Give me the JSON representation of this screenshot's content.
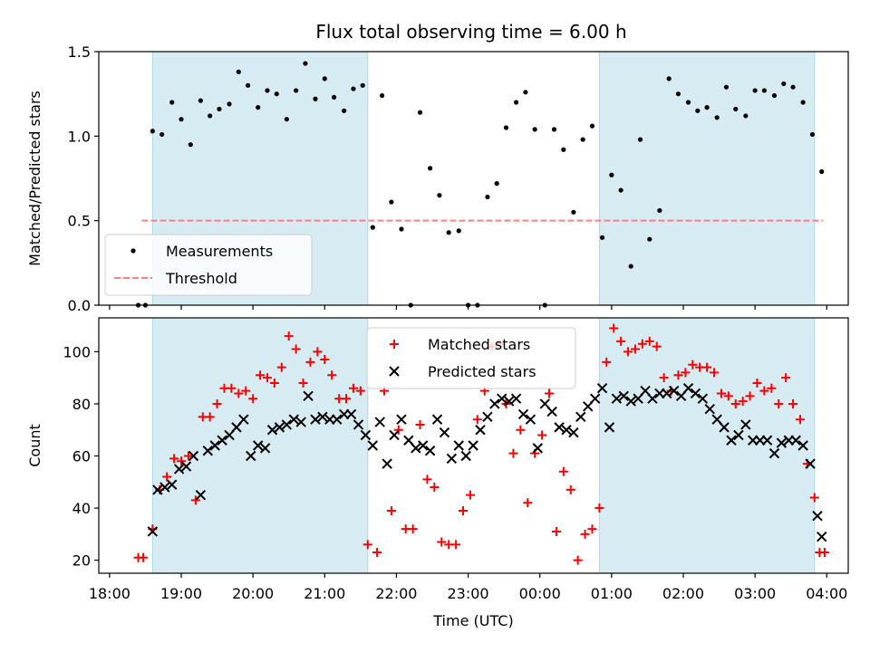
{
  "chart_data": [
    {
      "type": "scatter",
      "title": "Flux total observing time = 6.00 h",
      "xlabel": "",
      "ylabel": "Matched/Predicted stars",
      "xlim": [
        -0.15,
        10.3
      ],
      "ylim": [
        0,
        1.5
      ],
      "yticks": [
        "0.0",
        "0.5",
        "1.0",
        "1.5"
      ],
      "shaded_intervals": [
        [
          0.6,
          3.6
        ],
        [
          6.83,
          9.83
        ]
      ],
      "threshold": {
        "value": 0.5,
        "x_range": [
          0.45,
          9.95
        ],
        "color": "#ff7f7f"
      },
      "legend": {
        "location": "lower-left",
        "entries": [
          "Measurements",
          "Threshold"
        ]
      },
      "series": [
        {
          "name": "Measurements",
          "color": "#000000",
          "x": [
            0.4,
            0.5,
            0.6,
            0.73,
            0.87,
            1.0,
            1.13,
            1.27,
            1.4,
            1.53,
            1.67,
            1.8,
            1.93,
            2.07,
            2.2,
            2.33,
            2.47,
            2.6,
            2.73,
            2.87,
            3.0,
            3.13,
            3.27,
            3.4,
            3.53,
            3.67,
            3.8,
            3.93,
            4.07,
            4.2,
            4.33,
            4.47,
            4.6,
            4.73,
            4.87,
            5.0,
            5.13,
            5.27,
            5.4,
            5.53,
            5.67,
            5.8,
            5.93,
            6.07,
            6.2,
            6.33,
            6.47,
            6.6,
            6.73,
            6.87,
            7.0,
            7.13,
            7.27,
            7.4,
            7.53,
            7.67,
            7.8,
            7.93,
            8.07,
            8.2,
            8.33,
            8.47,
            8.6,
            8.73,
            8.87,
            9.0,
            9.13,
            9.27,
            9.4,
            9.53,
            9.67,
            9.8,
            9.93
          ],
          "y": [
            0.0,
            0.0,
            1.03,
            1.01,
            1.2,
            1.1,
            0.95,
            1.21,
            1.12,
            1.16,
            1.19,
            1.38,
            1.3,
            1.17,
            1.27,
            1.25,
            1.1,
            1.27,
            1.43,
            1.22,
            1.34,
            1.23,
            1.15,
            1.28,
            1.3,
            0.46,
            1.24,
            0.61,
            0.45,
            0.0,
            1.14,
            0.81,
            0.65,
            0.43,
            0.44,
            0.0,
            0.0,
            0.64,
            0.72,
            1.05,
            1.2,
            1.26,
            1.04,
            0.0,
            1.04,
            0.92,
            0.55,
            0.98,
            1.06,
            0.4,
            0.77,
            0.68,
            0.23,
            0.98,
            0.39,
            0.56,
            1.34,
            1.25,
            1.2,
            1.15,
            1.17,
            1.11,
            1.29,
            1.16,
            1.12,
            1.27,
            1.27,
            1.24,
            1.31,
            1.29,
            1.2,
            1.01,
            0.79
          ]
        }
      ]
    },
    {
      "type": "scatter",
      "title": "",
      "xlabel": "Time (UTC)",
      "ylabel": "Count",
      "xlim": [
        -0.15,
        10.3
      ],
      "ylim": [
        15,
        113
      ],
      "yticks": [
        "20",
        "40",
        "60",
        "80",
        "100"
      ],
      "xticks": [
        "18:00",
        "19:00",
        "20:00",
        "21:00",
        "22:00",
        "23:00",
        "00:00",
        "01:00",
        "02:00",
        "03:00",
        "04:00"
      ],
      "shaded_intervals": [
        [
          0.6,
          3.6
        ],
        [
          6.83,
          9.83
        ]
      ],
      "legend": {
        "location": "upper-center",
        "entries": [
          "Matched stars",
          "Predicted stars"
        ]
      },
      "series": [
        {
          "name": "Matched stars",
          "color": "#ff0000",
          "marker": "+",
          "x": [
            0.4,
            0.47,
            0.6,
            0.7,
            0.8,
            0.9,
            1.0,
            1.1,
            1.2,
            1.3,
            1.4,
            1.5,
            1.6,
            1.7,
            1.8,
            1.9,
            2.0,
            2.1,
            2.2,
            2.3,
            2.4,
            2.5,
            2.6,
            2.7,
            2.8,
            2.9,
            3.0,
            3.1,
            3.2,
            3.3,
            3.4,
            3.5,
            3.6,
            3.73,
            3.83,
            3.93,
            4.03,
            4.13,
            4.23,
            4.33,
            4.43,
            4.53,
            4.63,
            4.73,
            4.83,
            4.93,
            5.03,
            5.13,
            5.23,
            5.33,
            5.43,
            5.53,
            5.63,
            5.73,
            5.83,
            5.93,
            6.03,
            6.13,
            6.23,
            6.33,
            6.43,
            6.53,
            6.63,
            6.73,
            6.83,
            6.93,
            7.03,
            7.13,
            7.23,
            7.33,
            7.43,
            7.53,
            7.63,
            7.73,
            7.83,
            7.93,
            8.03,
            8.13,
            8.23,
            8.33,
            8.43,
            8.53,
            8.63,
            8.73,
            8.83,
            8.93,
            9.03,
            9.13,
            9.23,
            9.33,
            9.43,
            9.53,
            9.63,
            9.73,
            9.83,
            9.9,
            9.97
          ],
          "y": [
            21,
            21,
            32,
            47,
            52,
            59,
            58,
            60,
            43,
            75,
            75,
            80,
            86,
            86,
            84,
            85,
            82,
            91,
            90,
            88,
            94,
            106,
            101,
            88,
            96,
            100,
            97,
            91,
            82,
            82,
            86,
            85,
            26,
            23,
            85,
            39,
            70,
            32,
            32,
            72,
            51,
            48,
            27,
            26,
            26,
            39,
            45,
            74,
            85,
            102,
            103,
            80,
            61,
            70,
            42,
            61,
            68,
            84,
            31,
            54,
            47,
            20,
            30,
            32,
            40,
            96,
            109,
            104,
            100,
            101,
            103,
            104,
            102,
            90,
            85,
            91,
            92,
            95,
            94,
            94,
            92,
            84,
            83,
            80,
            81,
            83,
            88,
            85,
            86,
            80,
            90,
            80,
            74,
            57,
            44,
            23,
            23
          ]
        },
        {
          "name": "Predicted stars",
          "color": "#000000",
          "marker": "x",
          "x": [
            0.6,
            0.67,
            0.77,
            0.87,
            0.97,
            1.07,
            1.17,
            1.27,
            1.37,
            1.47,
            1.57,
            1.67,
            1.77,
            1.87,
            1.97,
            2.07,
            2.17,
            2.27,
            2.37,
            2.47,
            2.57,
            2.67,
            2.77,
            2.87,
            2.97,
            3.07,
            3.17,
            3.27,
            3.37,
            3.47,
            3.57,
            3.67,
            3.77,
            3.87,
            3.97,
            4.07,
            4.17,
            4.27,
            4.37,
            4.47,
            4.57,
            4.67,
            4.77,
            4.87,
            4.97,
            5.07,
            5.17,
            5.27,
            5.37,
            5.47,
            5.57,
            5.67,
            5.77,
            5.87,
            5.97,
            6.07,
            6.17,
            6.27,
            6.37,
            6.47,
            6.57,
            6.67,
            6.77,
            6.87,
            6.97,
            7.07,
            7.17,
            7.27,
            7.37,
            7.47,
            7.57,
            7.67,
            7.77,
            7.87,
            7.97,
            8.07,
            8.17,
            8.27,
            8.37,
            8.47,
            8.57,
            8.67,
            8.77,
            8.87,
            8.97,
            9.07,
            9.17,
            9.27,
            9.37,
            9.47,
            9.57,
            9.67,
            9.77,
            9.87,
            9.93
          ],
          "y": [
            31,
            47,
            48,
            49,
            55,
            56,
            60,
            45,
            62,
            64,
            66,
            68,
            71,
            74,
            60,
            64,
            63,
            70,
            71,
            72,
            74,
            73,
            83,
            74,
            75,
            74,
            74,
            76,
            76,
            72,
            68,
            64,
            73,
            57,
            68,
            74,
            66,
            63,
            64,
            62,
            74,
            69,
            59,
            64,
            60,
            64,
            70,
            75,
            80,
            82,
            81,
            82,
            76,
            74,
            63,
            80,
            77,
            71,
            70,
            69,
            75,
            79,
            82,
            86,
            71,
            82,
            83,
            81,
            82,
            85,
            82,
            84,
            84,
            85,
            83,
            86,
            84,
            82,
            78,
            74,
            71,
            66,
            68,
            72,
            66,
            66,
            66,
            61,
            65,
            66,
            66,
            64,
            57,
            37,
            29
          ]
        }
      ]
    }
  ]
}
